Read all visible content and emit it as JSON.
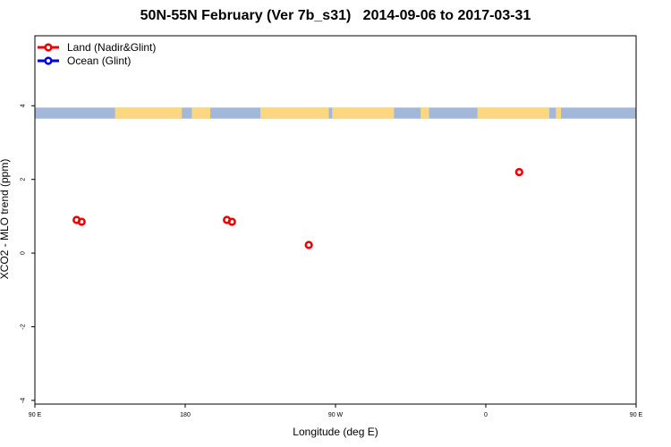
{
  "chart_data": {
    "type": "scatter",
    "title": "50N-55N February (Ver 7b_s31)   2014-09-06 to 2017-03-31",
    "xlabel": "Longitude (deg E)",
    "ylabel": "XCO2 - MLO trend (ppm)",
    "xlim": [
      90,
      450
    ],
    "ylim": [
      -4.1,
      5.9
    ],
    "x_ticks": [
      {
        "value": 90,
        "label": "90 E"
      },
      {
        "value": 180,
        "label": "180"
      },
      {
        "value": 270,
        "label": "90 W"
      },
      {
        "value": 360,
        "label": "0"
      },
      {
        "value": 450,
        "label": "90 E"
      },
      {
        "value": 540,
        "label": "180"
      }
    ],
    "y_ticks": [
      {
        "value": -4,
        "label": "-4"
      },
      {
        "value": -2,
        "label": "-2"
      },
      {
        "value": 0,
        "label": "0"
      },
      {
        "value": 2,
        "label": "2"
      },
      {
        "value": 4,
        "label": "4"
      }
    ],
    "legend_position": "top-left",
    "grid": false,
    "series": [
      {
        "name": "Land (Nadir&Glint)",
        "color": "#ee0000",
        "points": [
          {
            "x": 115,
            "y": 0.9
          },
          {
            "x": 118,
            "y": 0.85
          },
          {
            "x": 254,
            "y": 0.22
          },
          {
            "x": 380,
            "y": 2.2
          },
          {
            "x": 205,
            "y": 0.9
          },
          {
            "x": 208,
            "y": 0.85
          }
        ]
      },
      {
        "name": "Ocean (Glint)",
        "color": "#0000ee",
        "points": []
      }
    ],
    "map_strip": {
      "y_range": [
        3.65,
        3.95
      ],
      "ocean_color": "#a3b8d9",
      "land_color": "#fbd77f",
      "land_lon_ranges": [
        [
          -5,
          38
        ],
        [
          42,
          45
        ],
        [
          138,
          178
        ],
        [
          184,
          195
        ],
        [
          225,
          266
        ],
        [
          268,
          305
        ],
        [
          321,
          326
        ]
      ]
    }
  }
}
